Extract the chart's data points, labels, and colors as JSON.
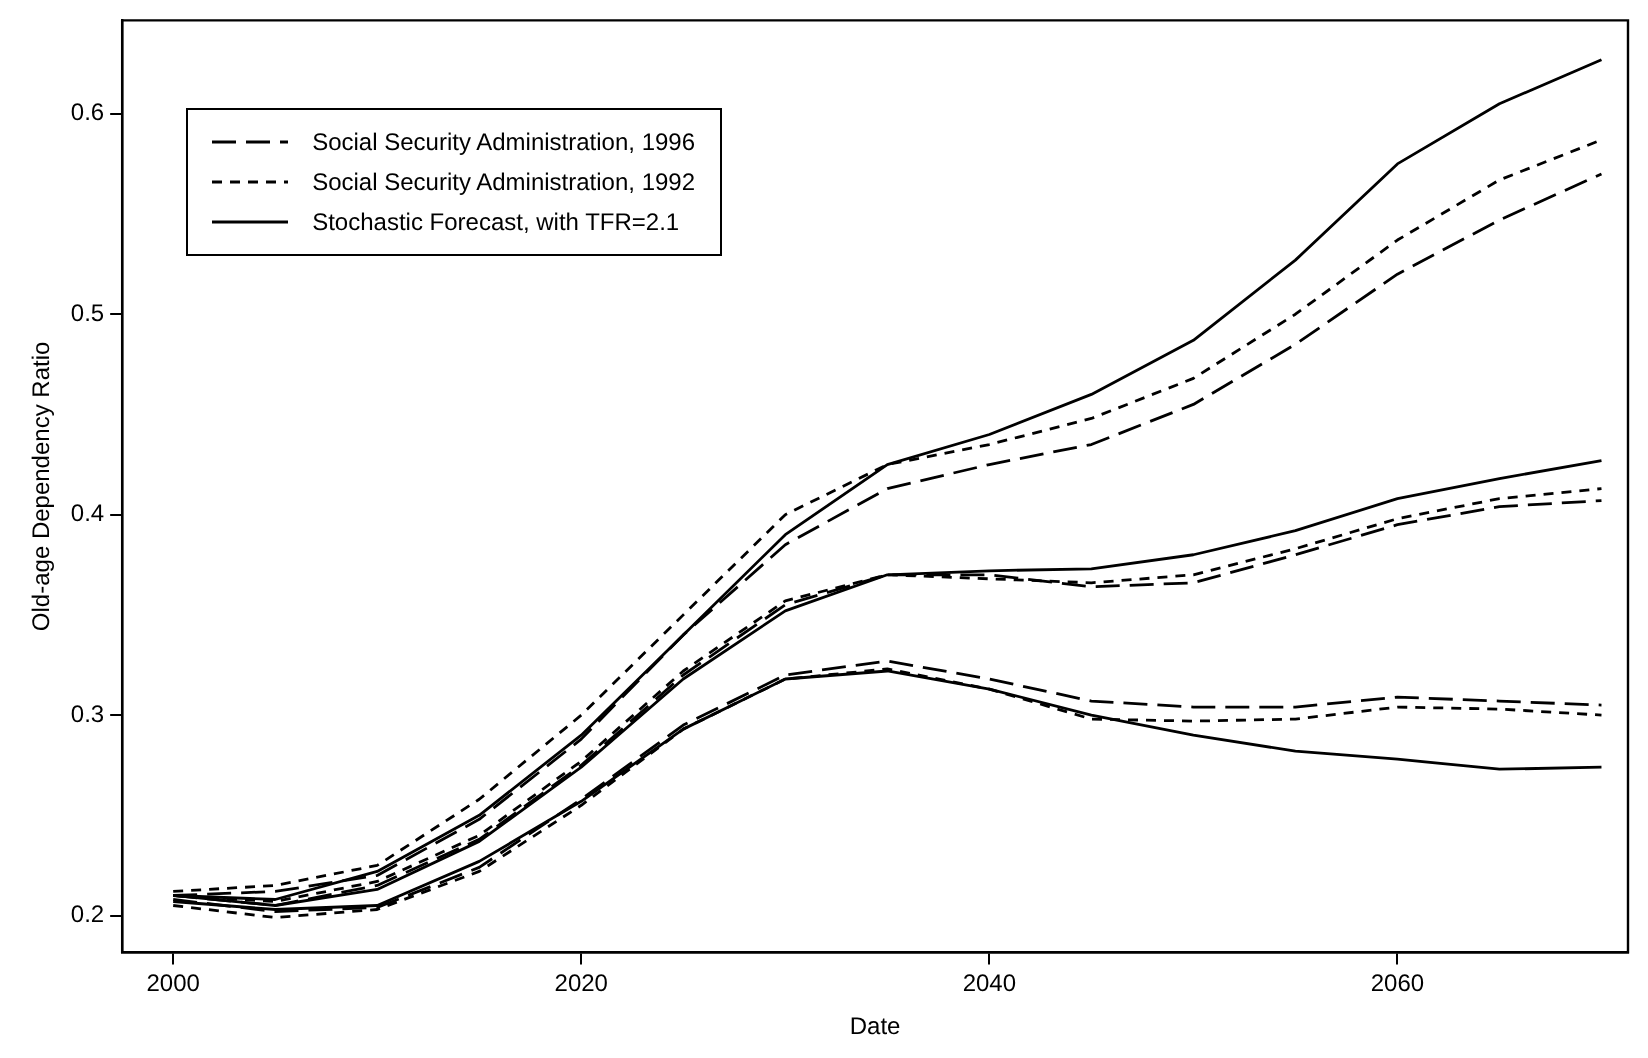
{
  "chart_data": {
    "type": "line",
    "xlabel": "Date",
    "ylabel": "Old-age Dependency Ratio",
    "xlim": [
      1997.5,
      2071.3
    ],
    "ylim": [
      0.1816,
      0.6466
    ],
    "xticks": [
      2000,
      2020,
      2040,
      2060
    ],
    "yticks": [
      0.2,
      0.3,
      0.4,
      0.5,
      0.6
    ],
    "grid": false,
    "legend": "top left",
    "marker": "none",
    "x": [
      2000,
      2005,
      2010,
      2015,
      2020,
      2025,
      2030,
      2035,
      2040,
      2045,
      2050,
      2055,
      2060,
      2065,
      2070
    ],
    "series": [
      {
        "name": "Social Security Administration, 1996",
        "color": "#000000",
        "line_style": "dashed",
        "values": [
          0.21,
          0.212,
          0.22,
          0.248,
          0.288,
          0.34,
          0.385,
          0.413,
          0.425,
          0.435,
          0.455,
          0.485,
          0.52,
          0.547,
          0.57
        ]
      },
      {
        "name": "Social Security Administration, 1992",
        "color": "#000000",
        "line_style": "dotted",
        "values": [
          0.212,
          0.215,
          0.225,
          0.258,
          0.3,
          0.35,
          0.4,
          0.425,
          0.435,
          0.448,
          0.468,
          0.5,
          0.537,
          0.567,
          0.587
        ]
      },
      {
        "name": "Stochastic Forecast, with TFR=2.1",
        "color": "#000000",
        "line_style": "solid",
        "values": [
          0.21,
          0.208,
          0.222,
          0.25,
          0.29,
          0.34,
          0.39,
          0.425,
          0.44,
          0.46,
          0.487,
          0.527,
          0.575,
          0.605,
          0.627
        ]
      },
      {
        "color": "#000000",
        "line_style": "dashed",
        "values": [
          0.21,
          0.205,
          0.215,
          0.238,
          0.275,
          0.32,
          0.355,
          0.37,
          0.37,
          0.364,
          0.366,
          0.38,
          0.395,
          0.404,
          0.407
        ]
      },
      {
        "color": "#000000",
        "line_style": "dotted",
        "values": [
          0.21,
          0.207,
          0.217,
          0.24,
          0.277,
          0.322,
          0.357,
          0.37,
          0.368,
          0.366,
          0.37,
          0.383,
          0.398,
          0.408,
          0.413
        ]
      },
      {
        "color": "#000000",
        "line_style": "solid",
        "values": [
          0.21,
          0.205,
          0.213,
          0.237,
          0.274,
          0.318,
          0.352,
          0.37,
          0.372,
          0.373,
          0.38,
          0.392,
          0.408,
          0.418,
          0.427
        ]
      },
      {
        "color": "#000000",
        "line_style": "dashed",
        "values": [
          0.208,
          0.202,
          0.204,
          0.224,
          0.258,
          0.295,
          0.32,
          0.327,
          0.318,
          0.307,
          0.304,
          0.304,
          0.309,
          0.307,
          0.305
        ]
      },
      {
        "color": "#000000",
        "line_style": "dotted",
        "values": [
          0.205,
          0.199,
          0.203,
          0.222,
          0.255,
          0.293,
          0.318,
          0.323,
          0.313,
          0.298,
          0.297,
          0.298,
          0.304,
          0.303,
          0.3
        ]
      },
      {
        "color": "#000000",
        "line_style": "solid",
        "values": [
          0.207,
          0.203,
          0.205,
          0.227,
          0.257,
          0.293,
          0.318,
          0.322,
          0.313,
          0.3,
          0.29,
          0.282,
          0.278,
          0.273,
          0.274
        ]
      }
    ]
  }
}
